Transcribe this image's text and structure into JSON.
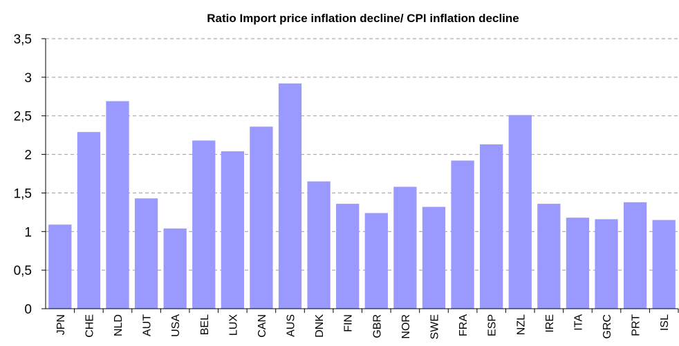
{
  "chart_data": {
    "type": "bar",
    "title": "Ratio Import price inflation decline/ CPI inflation decline",
    "categories": [
      "JPN",
      "CHE",
      "NLD",
      "AUT",
      "USA",
      "BEL",
      "LUX",
      "CAN",
      "AUS",
      "DNK",
      "FIN",
      "GBR",
      "NOR",
      "SWE",
      "FRA",
      "ESP",
      "NZL",
      "IRE",
      "ITA",
      "GRC",
      "PRT",
      "ISL"
    ],
    "values": [
      1.09,
      2.29,
      2.69,
      1.43,
      1.04,
      2.18,
      2.04,
      2.36,
      2.92,
      1.65,
      1.36,
      1.24,
      1.58,
      1.32,
      1.92,
      2.13,
      2.51,
      1.36,
      1.18,
      1.16,
      1.38,
      1.15
    ],
    "color": "#9999ff",
    "ylim": [
      0,
      3.5
    ],
    "yticks": [
      0,
      {
        "value": 0.5,
        "label": "0,5"
      },
      1,
      {
        "value": 1.5,
        "label": "1,5"
      },
      2,
      {
        "value": 2.5,
        "label": "2,5"
      },
      3,
      {
        "value": 3.5,
        "label": "3,5"
      }
    ],
    "grid": true
  }
}
